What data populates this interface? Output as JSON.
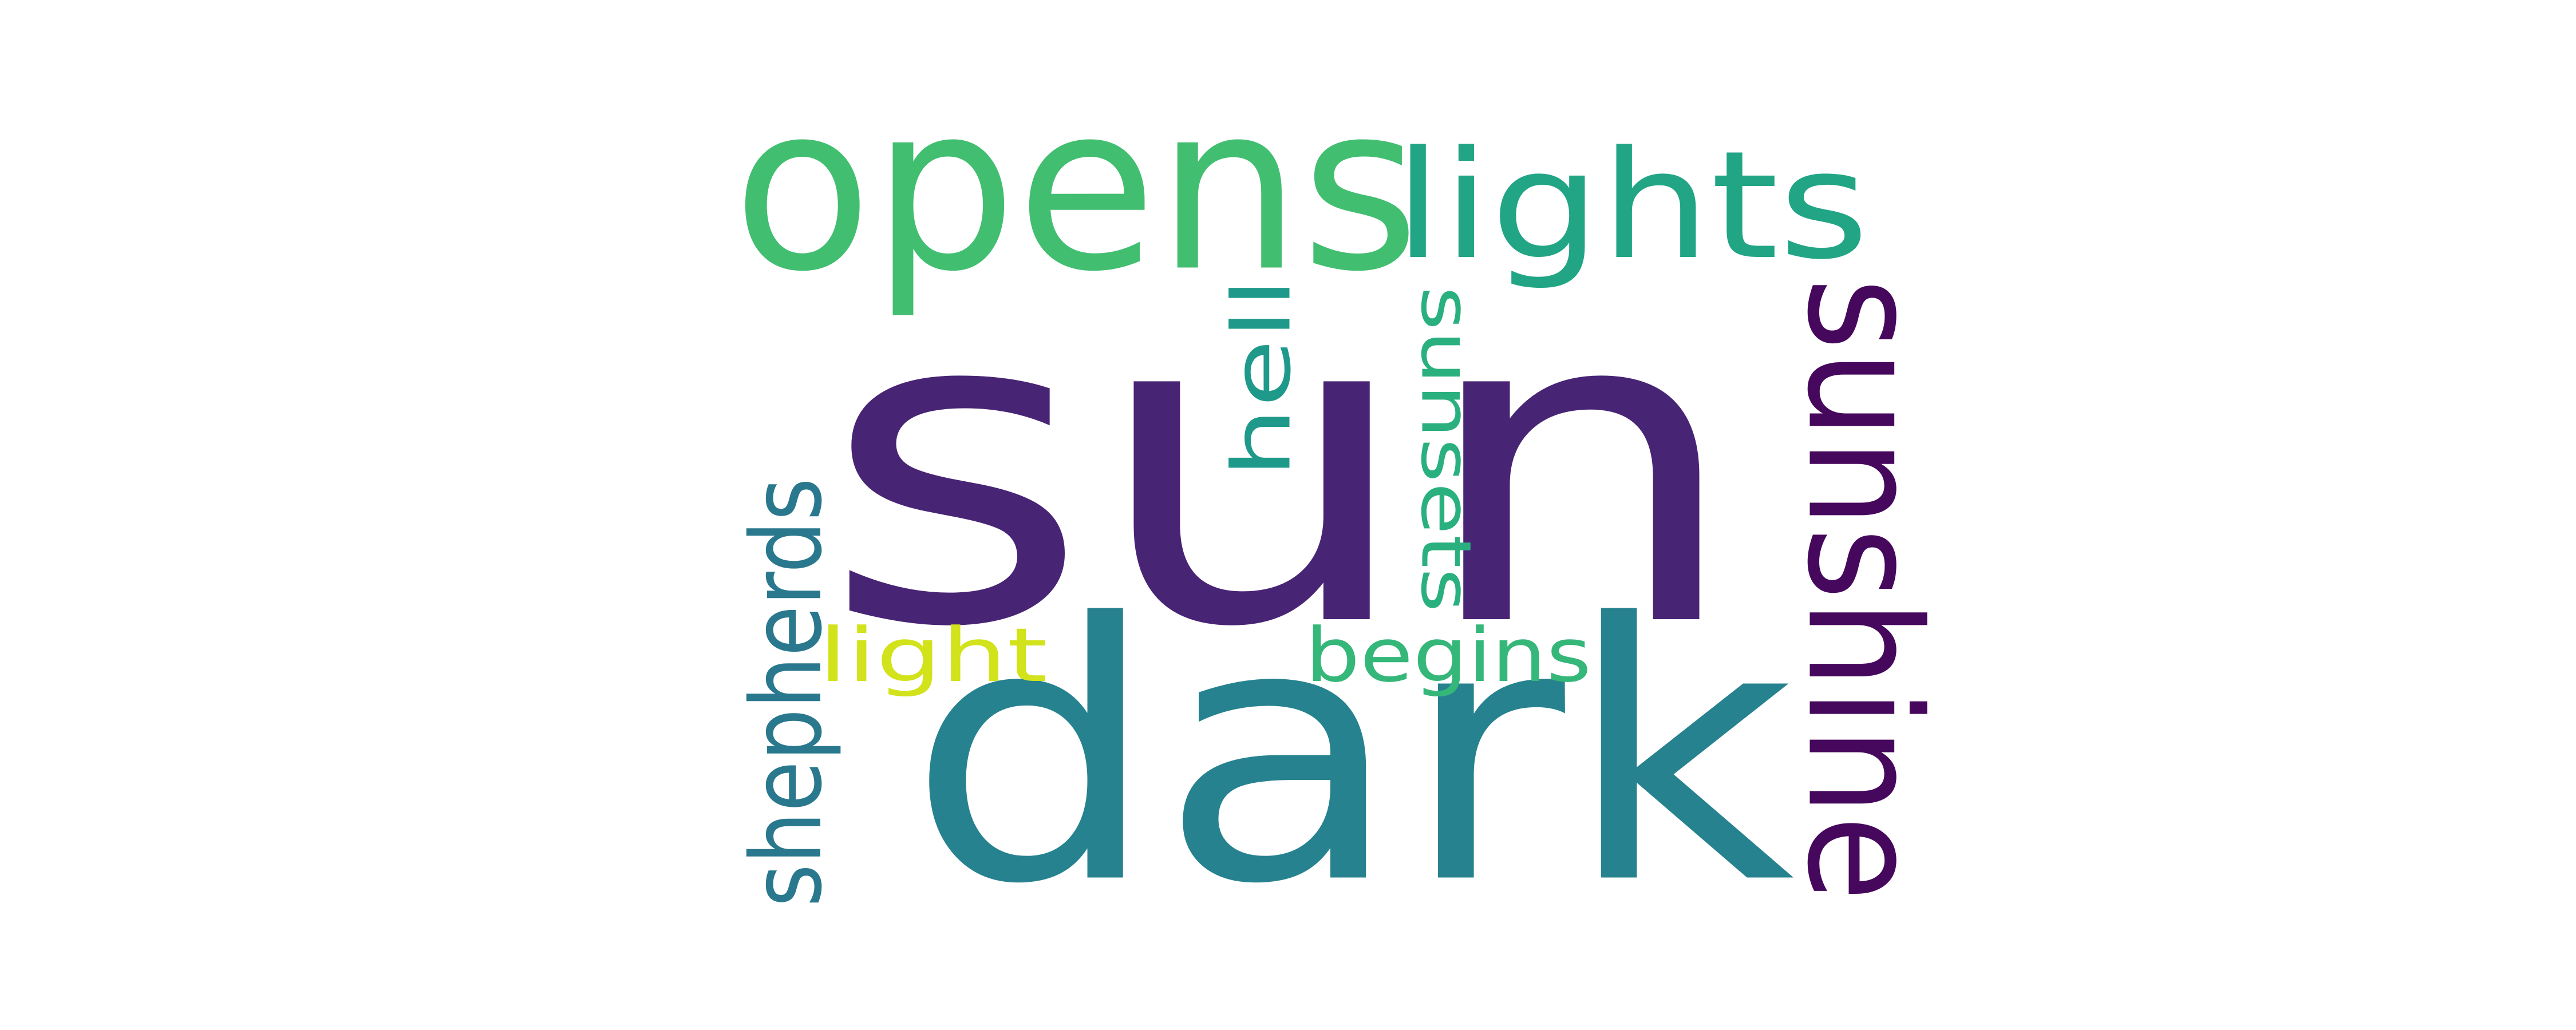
{
  "words": [
    {
      "text": "sun",
      "color": "#482475"
    },
    {
      "text": "dark",
      "color": "#26828e"
    },
    {
      "text": "opens",
      "color": "#42be71"
    },
    {
      "text": "lights",
      "color": "#21a585"
    },
    {
      "text": "sunshine",
      "color": "#46085c"
    },
    {
      "text": "shepherds",
      "color": "#2a788e"
    },
    {
      "text": "sunsets",
      "color": "#2ab07f"
    },
    {
      "text": "hell",
      "color": "#1f998a"
    },
    {
      "text": "begins",
      "color": "#35b779"
    },
    {
      "text": "light",
      "color": "#d2e21b"
    }
  ]
}
